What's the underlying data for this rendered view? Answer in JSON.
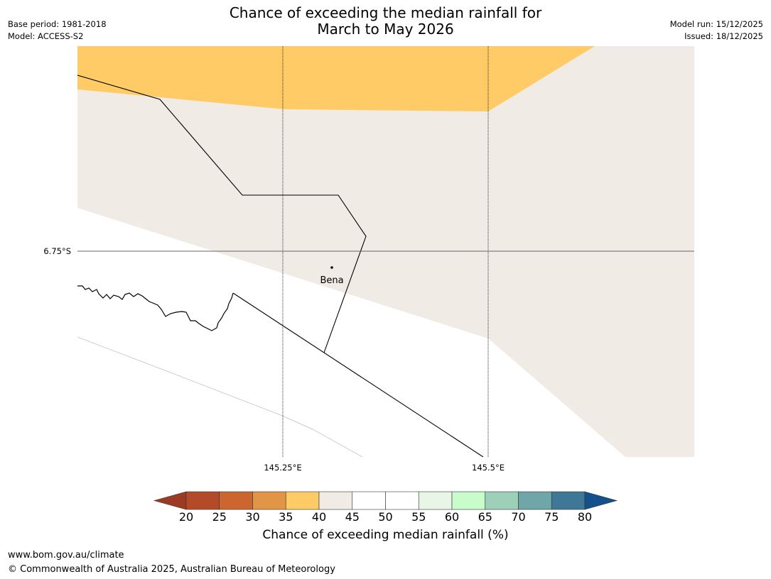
{
  "title_line1": "Chance of exceeding the median rainfall for",
  "title_line2": "March to May 2026",
  "base_period": "Base period: 1981-2018",
  "model": "Model: ACCESS-S2",
  "model_run": "Model run: 15/12/2025",
  "issued": "Issued: 18/12/2025",
  "map": {
    "lon_labels": [
      "145.25°E",
      "145.5°E"
    ],
    "lat_labels": [
      "6.75°S"
    ],
    "place": "Bena",
    "colors": {
      "orange_35_40": "#fecb66",
      "beige_40_45": "#f0ebe5",
      "white_45_55": "#ffffff"
    }
  },
  "colorbar": {
    "ticks": [
      "20",
      "25",
      "30",
      "35",
      "40",
      "45",
      "50",
      "55",
      "60",
      "65",
      "70",
      "75",
      "80"
    ],
    "colors": [
      "#9c3a24",
      "#b34a28",
      "#cc6631",
      "#e19647",
      "#fecb66",
      "#f0ebe5",
      "#ffffff",
      "#ffffff",
      "#e9f5e7",
      "#c8fccb",
      "#9dd0b9",
      "#6fa6a7",
      "#3f7796",
      "#14508b"
    ],
    "label": "Chance of exceeding median rainfall (%)"
  },
  "footer_url": "www.bom.gov.au/climate",
  "footer_copyright": "© Commonwealth of Australia 2025, Australian Bureau of Meteorology"
}
